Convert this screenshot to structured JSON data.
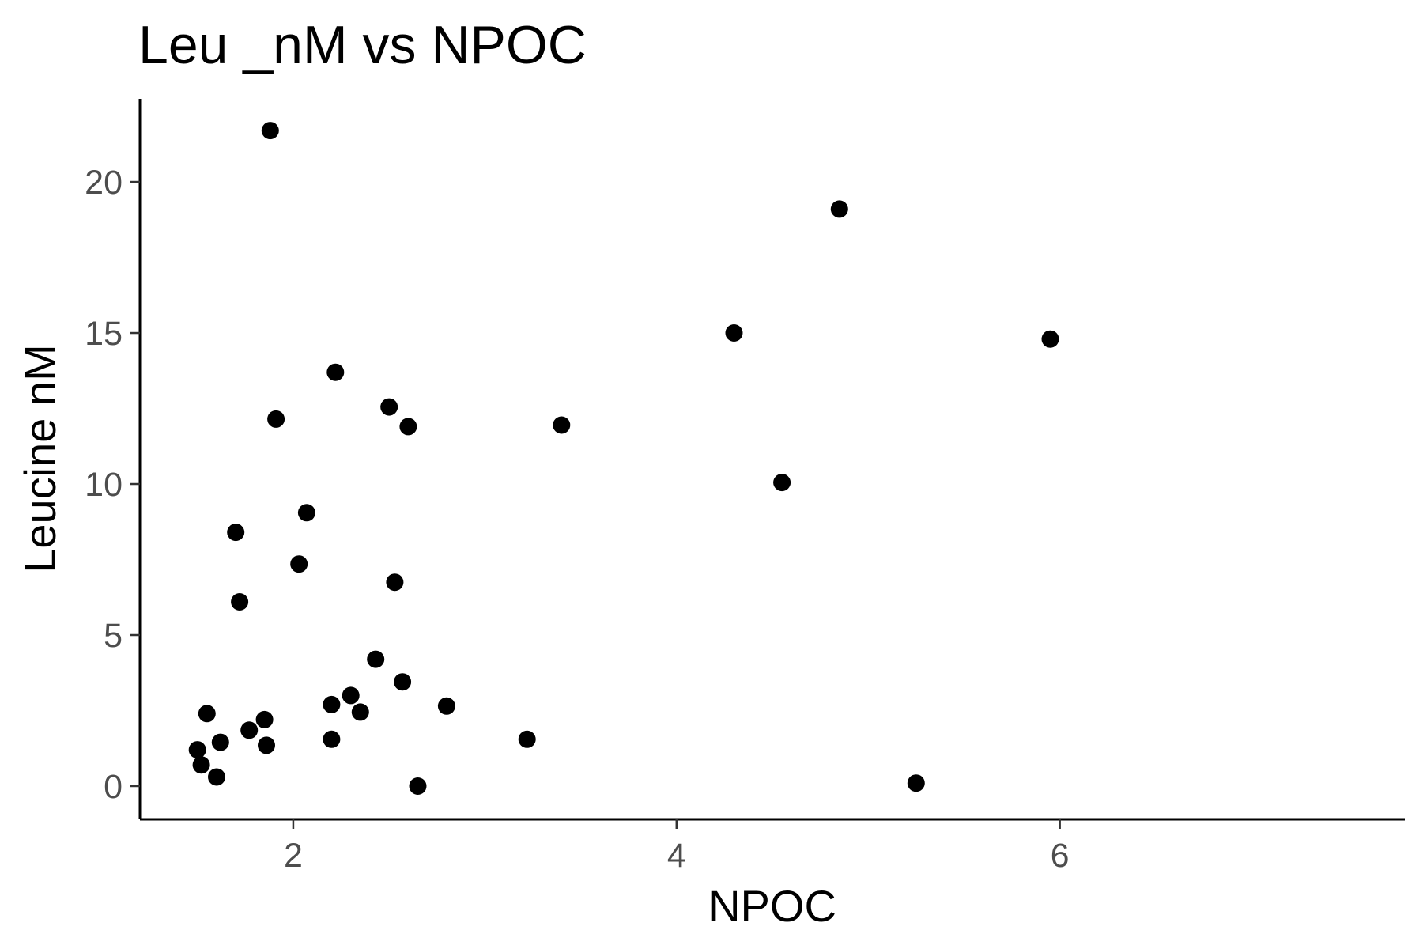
{
  "chart_data": {
    "type": "scatter",
    "title": "Leu _nM vs NPOC",
    "xlabel": "NPOC",
    "ylabel": "Leucine nM",
    "xlim": [
      1.2,
      7.8
    ],
    "ylim": [
      -1.1,
      22.75
    ],
    "x_ticks": [
      2,
      4,
      6
    ],
    "x_tick_labels": [
      "2",
      "4",
      "6"
    ],
    "y_ticks": [
      0,
      5,
      10,
      15,
      20
    ],
    "y_tick_labels": [
      "0",
      "5",
      "10",
      "15",
      "20"
    ],
    "grid": false,
    "legend": "none",
    "colors": {
      "point": "#000000",
      "axis": "#000000",
      "tick_label": "#4d4d4d"
    },
    "points": [
      {
        "x": 1.88,
        "y": 21.7
      },
      {
        "x": 4.85,
        "y": 19.1
      },
      {
        "x": 4.3,
        "y": 15.0
      },
      {
        "x": 5.95,
        "y": 14.8
      },
      {
        "x": 2.22,
        "y": 13.7
      },
      {
        "x": 2.5,
        "y": 12.55
      },
      {
        "x": 1.91,
        "y": 12.15
      },
      {
        "x": 2.6,
        "y": 11.9
      },
      {
        "x": 3.4,
        "y": 11.95
      },
      {
        "x": 4.55,
        "y": 10.05
      },
      {
        "x": 2.07,
        "y": 9.05
      },
      {
        "x": 1.7,
        "y": 8.4
      },
      {
        "x": 2.03,
        "y": 7.35
      },
      {
        "x": 2.53,
        "y": 6.75
      },
      {
        "x": 1.72,
        "y": 6.1
      },
      {
        "x": 2.43,
        "y": 4.2
      },
      {
        "x": 2.57,
        "y": 3.45
      },
      {
        "x": 2.3,
        "y": 3.0
      },
      {
        "x": 2.2,
        "y": 2.7
      },
      {
        "x": 2.8,
        "y": 2.65
      },
      {
        "x": 2.35,
        "y": 2.45
      },
      {
        "x": 1.55,
        "y": 2.4
      },
      {
        "x": 1.85,
        "y": 2.2
      },
      {
        "x": 1.77,
        "y": 1.85
      },
      {
        "x": 3.22,
        "y": 1.55
      },
      {
        "x": 2.2,
        "y": 1.55
      },
      {
        "x": 1.62,
        "y": 1.45
      },
      {
        "x": 1.86,
        "y": 1.35
      },
      {
        "x": 1.5,
        "y": 1.2
      },
      {
        "x": 1.52,
        "y": 0.7
      },
      {
        "x": 1.6,
        "y": 0.3
      },
      {
        "x": 2.65,
        "y": 0.0
      },
      {
        "x": 5.25,
        "y": 0.1
      }
    ]
  }
}
